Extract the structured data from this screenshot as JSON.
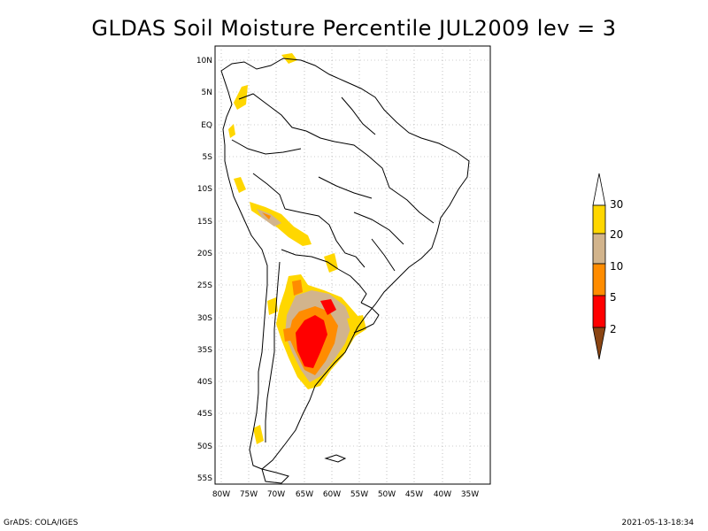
{
  "title": "GLDAS Soil Moisture Percentile JUL2009 lev = 3",
  "lat_labels": [
    "10N",
    "5N",
    "EQ",
    "5S",
    "10S",
    "15S",
    "20S",
    "25S",
    "30S",
    "35S",
    "40S",
    "45S",
    "50S",
    "55S"
  ],
  "lon_labels": [
    "80W",
    "75W",
    "70W",
    "65W",
    "60W",
    "55W",
    "50W",
    "45W",
    "40W",
    "35W"
  ],
  "colorbar": {
    "labels": [
      "30",
      "20",
      "10",
      "5",
      "2"
    ],
    "colors": {
      "above30": "#ffffff",
      "c20_30": "#ffd700",
      "c10_20": "#d2b48c",
      "c5_10": "#ff8c00",
      "c2_5": "#ff0000",
      "below2": "#8b4513"
    }
  },
  "footer": {
    "left": "GrADS: COLA/IGES",
    "right": "2021-05-13-18:34"
  }
}
